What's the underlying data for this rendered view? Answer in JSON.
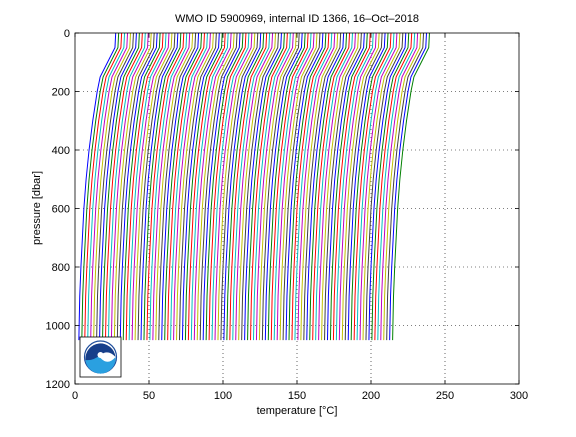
{
  "chart_data": {
    "type": "line",
    "title": "WMO ID 5900969, internal ID 1366, 16–Oct–2018",
    "xlabel": "temperature [°C]",
    "ylabel": "pressure [dbar]",
    "xlim": [
      0,
      300
    ],
    "ylim": [
      0,
      1200
    ],
    "y_reversed": true,
    "xticks": [
      "0",
      "50",
      "100",
      "150",
      "200",
      "250",
      "300"
    ],
    "yticks": [
      "0",
      "200",
      "400",
      "600",
      "800",
      "1000",
      "1200"
    ],
    "grid": true,
    "colors": [
      "#0000ff",
      "#008000",
      "#ff0000",
      "#00bfbf",
      "#bf00bf",
      "#bfbf00",
      "#404040"
    ],
    "profiles": {
      "count": 107,
      "offset_start": 0,
      "offset_step": 2.0,
      "pressure": [
        0,
        50,
        100,
        150,
        200,
        300,
        400,
        500,
        600,
        700,
        800,
        900,
        1000,
        1050
      ],
      "temperature_base": [
        27.5,
        27.0,
        22.0,
        17.0,
        15.0,
        12.0,
        9.5,
        7.5,
        6.0,
        5.0,
        4.0,
        3.2,
        2.8,
        2.6
      ]
    }
  },
  "logo": {
    "text": "NOAA"
  }
}
